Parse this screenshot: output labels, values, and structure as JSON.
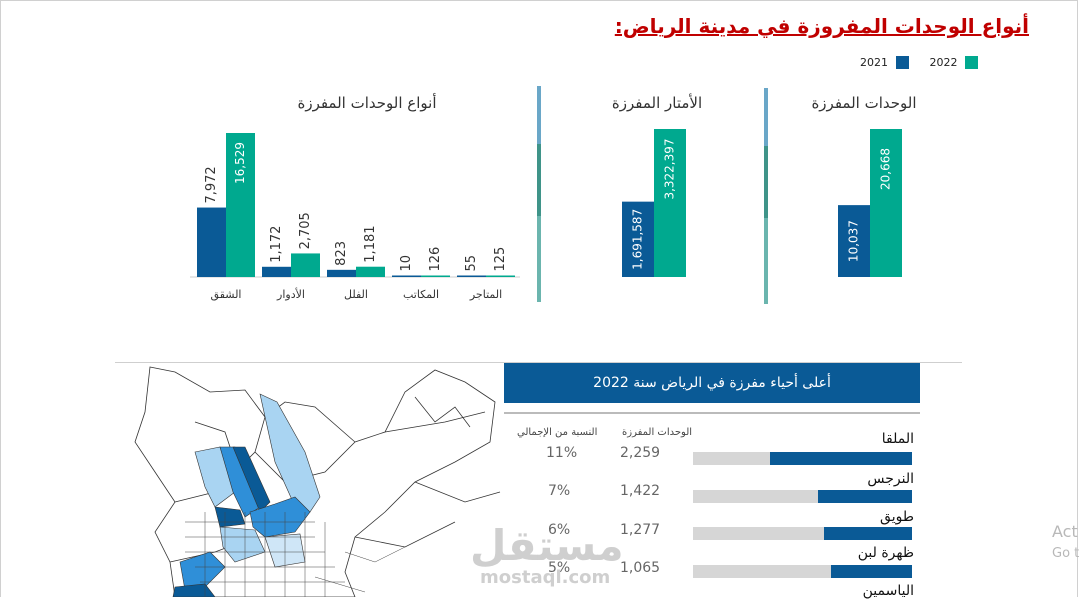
{
  "title": "أنواع الوحدات المفروزة في مدينة الرياض:",
  "legend": [
    {
      "label": "2021",
      "color": "#0a5a96"
    },
    {
      "label": "2022",
      "color": "#00a98f"
    }
  ],
  "colors": {
    "y2021": "#0a5a96",
    "y2022": "#00a98f",
    "gray": "#d6d6d6",
    "title": "#c00000"
  },
  "chart_data": [
    {
      "type": "bar",
      "title": "أنواع الوحدات المفرزة",
      "categories": [
        "الشقق",
        "الأدوار",
        "الفلل",
        "المكاتب",
        "المتاجر"
      ],
      "series": [
        {
          "name": "2021",
          "values": [
            7972,
            1172,
            823,
            10,
            55
          ],
          "labels": [
            "7,972",
            "1,172",
            "823",
            "10",
            "55"
          ]
        },
        {
          "name": "2022",
          "values": [
            16529,
            2705,
            1181,
            126,
            125
          ],
          "labels": [
            "16,529",
            "2,705",
            "1,181",
            "126",
            "125"
          ]
        }
      ],
      "ylim": [
        0,
        16529
      ]
    },
    {
      "type": "bar",
      "title": "الأمتار المفرزة",
      "categories": [
        ""
      ],
      "series": [
        {
          "name": "2021",
          "values": [
            1691587
          ],
          "labels": [
            "1,691,587"
          ]
        },
        {
          "name": "2022",
          "values": [
            3322397
          ],
          "labels": [
            "3,322,397"
          ]
        }
      ],
      "ylim": [
        0,
        3322397
      ]
    },
    {
      "type": "bar",
      "title": "الوحدات المفرزة",
      "categories": [
        ""
      ],
      "series": [
        {
          "name": "2021",
          "values": [
            10037
          ],
          "labels": [
            "10,037"
          ]
        },
        {
          "name": "2022",
          "values": [
            20668
          ],
          "labels": [
            "20,668"
          ]
        }
      ],
      "ylim": [
        0,
        20668
      ]
    }
  ],
  "neighborhoods": {
    "header": "أعلى أحياء مفرزة في الرياض سنة 2022",
    "col_units": "الوحدات المفرزة",
    "col_share": "النسبة من الإجمالي",
    "rows": [
      {
        "name": "الملقا",
        "units": "2,259",
        "share": "11%",
        "fraction": 0.65
      },
      {
        "name": "النرجس",
        "units": "1,422",
        "share": "7%",
        "fraction": 0.43
      },
      {
        "name": "طويق",
        "units": "1,277",
        "share": "6%",
        "fraction": 0.4
      },
      {
        "name": "ظهرة لبن",
        "units": "1,065",
        "share": "5%",
        "fraction": 0.37
      },
      {
        "name": "الياسمين"
      }
    ]
  },
  "watermark": {
    "arabic": "مستقل",
    "latin": "mostaql.com"
  },
  "activation": {
    "line1": "Act",
    "line2": "Go t"
  }
}
